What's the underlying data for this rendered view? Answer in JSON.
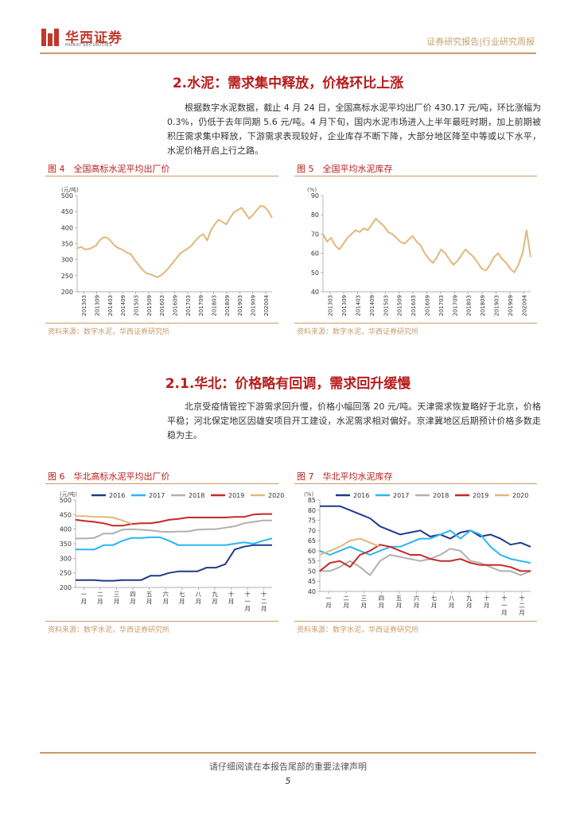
{
  "header": {
    "logo_cn": "华西证券",
    "logo_en": "HUAXI SECURITIES",
    "report_type": "证券研究报告|行业研究周报"
  },
  "section1": {
    "title": "2.水泥：需求集中释放，价格环比上涨",
    "paragraph": "根据数字水泥数据，截止 4 月 24 日，全国高标水泥平均出厂价 430.17 元/吨，环比涨幅为 0.3%，仍低于去年同期 5.6 元/吨。4 月下旬，国内水泥市场进入上半年最旺时期，加上前期被积压需求集中释放，下游需求表现较好，企业库存不断下降，大部分地区降至中等或以下水平，水泥价格开启上行之路。"
  },
  "section2": {
    "title": "2.1.华北：价格略有回调，需求回升缓慢",
    "paragraph": "北京受疫情管控下游需求回升慢，价格小幅回落 20 元/吨。天津需求恢复略好于北京，价格平稳；河北保定地区因雄安项目开工建设，水泥需求相对偏好。京津冀地区后期预计价格多数走稳为主。"
  },
  "source_text": "资料来源：数字水泥，华西证券研究所",
  "footer": {
    "disclaimer": "请仔细阅读在本报告尾部的重要法律声明",
    "page": "5"
  },
  "colors": {
    "brand_red": "#b71c1c",
    "gold": "#c99a6a",
    "line_tan": "#e2b77c",
    "s2016": "#1f3a8a",
    "s2017": "#29b6f6",
    "s2018": "#b0b0b0",
    "s2019": "#c62828",
    "s2020": "#e2b77c"
  },
  "chart_data": [
    {
      "id": "fig4",
      "figure_label": "图 4　全国高标水泥平均出厂价",
      "type": "line",
      "unit": "(元/吨)",
      "ylim": [
        200,
        500
      ],
      "yticks": [
        "500",
        "450",
        "400",
        "350",
        "300",
        "250",
        "200"
      ],
      "x_ticks": [
        "201303",
        "201309",
        "201403",
        "201409",
        "201503",
        "201509",
        "201603",
        "201609",
        "201703",
        "201709",
        "201803",
        "201809",
        "201903",
        "201909",
        "202004"
      ],
      "series": [
        {
          "values": [
            335,
            340,
            332,
            333,
            338,
            345,
            362,
            370,
            368,
            355,
            342,
            335,
            330,
            322,
            318,
            300,
            285,
            270,
            258,
            255,
            250,
            245,
            252,
            262,
            275,
            290,
            305,
            320,
            328,
            335,
            345,
            360,
            372,
            380,
            360,
            392,
            410,
            425,
            418,
            410,
            430,
            448,
            455,
            462,
            445,
            428,
            440,
            455,
            468,
            465,
            452,
            430
          ]
        }
      ]
    },
    {
      "id": "fig5",
      "figure_label": "图 5　全国平均水泥库存",
      "type": "line",
      "unit": "(%)",
      "ylim": [
        40,
        90
      ],
      "yticks": [
        "90",
        "80",
        "70",
        "60",
        "50",
        "40"
      ],
      "x_ticks": [
        "201303",
        "201309",
        "201403",
        "201409",
        "201503",
        "201509",
        "201603",
        "201609",
        "201703",
        "201709",
        "201803",
        "201809",
        "201903",
        "201909",
        "202004"
      ],
      "series": [
        {
          "values": [
            70,
            66,
            68,
            64,
            62,
            65,
            68,
            70,
            72,
            71,
            73,
            72,
            75,
            78,
            76,
            74,
            71,
            70,
            68,
            66,
            65,
            67,
            69,
            66,
            64,
            60,
            57,
            55,
            58,
            62,
            60,
            57,
            54,
            56,
            59,
            62,
            60,
            58,
            55,
            52,
            51,
            54,
            58,
            60,
            57,
            55,
            52,
            50,
            54,
            60,
            72,
            58
          ]
        }
      ]
    },
    {
      "id": "fig6",
      "figure_label": "图 6　华北高标水泥平均出厂价",
      "type": "line",
      "unit": "(元/吨)",
      "ylim": [
        200,
        500
      ],
      "yticks": [
        "500",
        "450",
        "400",
        "350",
        "300",
        "250",
        "200"
      ],
      "x_ticks": [
        "一月",
        "二月",
        "三月",
        "四月",
        "五月",
        "六月",
        "七月",
        "八月",
        "九月",
        "十月",
        "十一月",
        "十二月"
      ],
      "legend": [
        "2016",
        "2017",
        "2018",
        "2019",
        "2020"
      ],
      "series": [
        {
          "name": "2016",
          "color": "#1f3a8a",
          "values": [
            225,
            225,
            225,
            223,
            223,
            225,
            225,
            225,
            240,
            240,
            250,
            255,
            255,
            255,
            268,
            268,
            280,
            330,
            340,
            345,
            345,
            345
          ]
        },
        {
          "name": "2017",
          "color": "#29b6f6",
          "values": [
            330,
            330,
            330,
            345,
            345,
            360,
            370,
            370,
            372,
            372,
            360,
            345,
            345,
            345,
            345,
            345,
            345,
            350,
            355,
            350,
            360,
            368
          ]
        },
        {
          "name": "2018",
          "color": "#b0b0b0",
          "values": [
            368,
            368,
            370,
            385,
            385,
            398,
            400,
            398,
            396,
            392,
            390,
            392,
            392,
            398,
            400,
            400,
            405,
            410,
            420,
            425,
            430,
            430
          ]
        },
        {
          "name": "2019",
          "color": "#c62828",
          "values": [
            432,
            428,
            425,
            420,
            412,
            412,
            418,
            420,
            420,
            425,
            432,
            435,
            440,
            440,
            440,
            440,
            440,
            442,
            442,
            450,
            452,
            452
          ]
        },
        {
          "name": "2020",
          "color": "#e2b77c",
          "values": [
            445,
            445,
            442,
            442,
            440,
            430,
            418
          ]
        }
      ]
    },
    {
      "id": "fig7",
      "figure_label": "图 7　华北平均水泥库存",
      "type": "line",
      "unit": "(%)",
      "ylim": [
        40,
        85
      ],
      "yticks": [
        "85",
        "80",
        "75",
        "70",
        "65",
        "60",
        "55",
        "50",
        "45",
        "40"
      ],
      "x_ticks": [
        "一月",
        "二月",
        "三月",
        "四月",
        "五月",
        "六月",
        "七月",
        "八月",
        "九月",
        "十月",
        "十一月",
        "十二月"
      ],
      "legend": [
        "2016",
        "2017",
        "2018",
        "2019",
        "2020"
      ],
      "series": [
        {
          "name": "2016",
          "color": "#1f3a8a",
          "values": [
            82,
            82,
            82,
            80,
            78,
            76,
            72,
            70,
            68,
            69,
            70,
            67,
            68,
            66,
            69,
            70,
            67,
            68,
            66,
            63,
            64,
            62
          ]
        },
        {
          "name": "2017",
          "color": "#29b6f6",
          "values": [
            60,
            58,
            60,
            62,
            60,
            58,
            60,
            62,
            62,
            64,
            66,
            66,
            68,
            70,
            66,
            70,
            68,
            62,
            58,
            56,
            55,
            54
          ]
        },
        {
          "name": "2018",
          "color": "#b0b0b0",
          "values": [
            50,
            50,
            52,
            55,
            52,
            48,
            55,
            58,
            57,
            56,
            55,
            56,
            58,
            61,
            60,
            55,
            54,
            52,
            50,
            50,
            48,
            50
          ]
        },
        {
          "name": "2019",
          "color": "#c62828",
          "values": [
            50,
            54,
            55,
            52,
            58,
            60,
            63,
            62,
            60,
            58,
            58,
            56,
            55,
            55,
            56,
            54,
            53,
            53,
            53,
            52,
            50,
            50
          ]
        },
        {
          "name": "2020",
          "color": "#e2b77c",
          "values": [
            58,
            60,
            62,
            65,
            66,
            64,
            62
          ]
        }
      ]
    }
  ]
}
